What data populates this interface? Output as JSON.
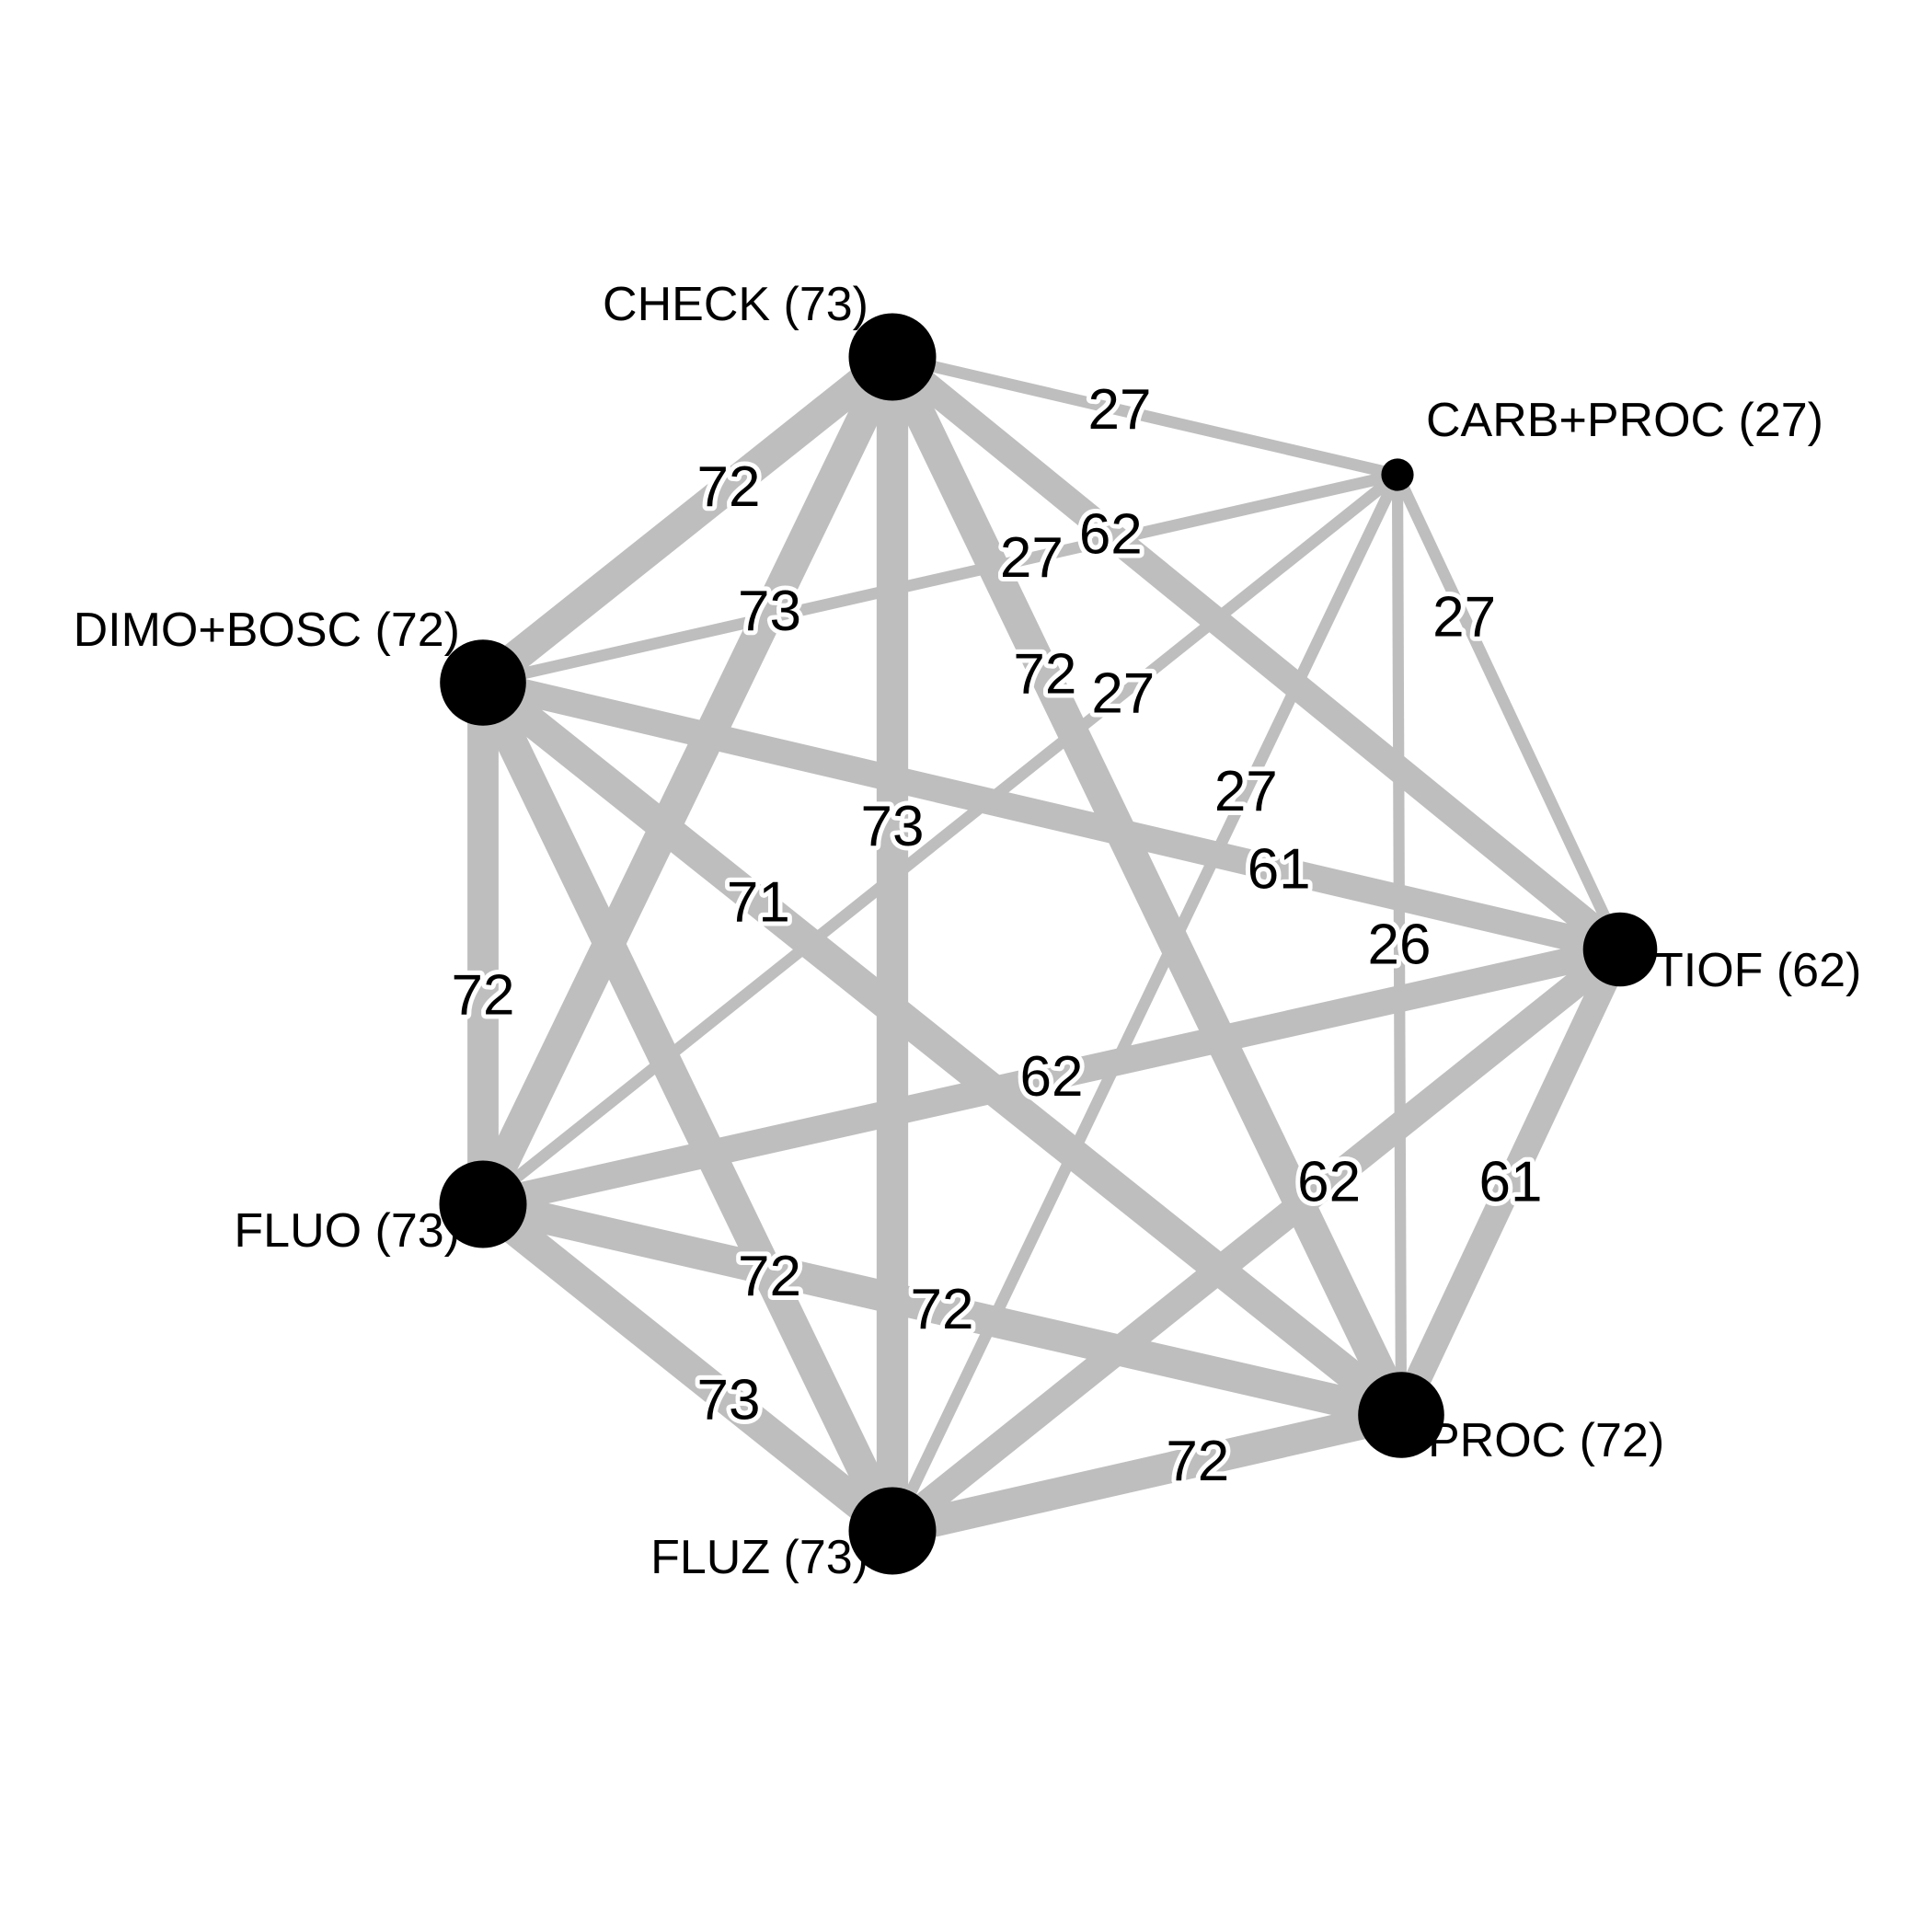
{
  "nodes": [
    {
      "id": "CHECK",
      "label": "CHECK (73)",
      "n": 73
    },
    {
      "id": "CARB+PROC",
      "label": "CARB+PROC (27)",
      "n": 27
    },
    {
      "id": "TIOF",
      "label": "TIOF (62)",
      "n": 62
    },
    {
      "id": "PROC",
      "label": "PROC (72)",
      "n": 72
    },
    {
      "id": "FLUZ",
      "label": "FLUZ (73)",
      "n": 73
    },
    {
      "id": "FLUO",
      "label": "FLUO (73)",
      "n": 73
    },
    {
      "id": "DIMO+BOSC",
      "label": "DIMO+BOSC (72)",
      "n": 72
    }
  ],
  "edges": [
    {
      "from": "CHECK",
      "to": "CARB+PROC",
      "label": "27",
      "value": 27
    },
    {
      "from": "CHECK",
      "to": "TIOF",
      "label": "62",
      "value": 62
    },
    {
      "from": "CHECK",
      "to": "PROC",
      "label": "72",
      "value": 72
    },
    {
      "from": "CHECK",
      "to": "FLUZ",
      "label": "73",
      "value": 73
    },
    {
      "from": "CHECK",
      "to": "FLUO",
      "label": "73",
      "value": 73
    },
    {
      "from": "CHECK",
      "to": "DIMO+BOSC",
      "label": "72",
      "value": 72
    },
    {
      "from": "CARB+PROC",
      "to": "TIOF",
      "label": "27",
      "value": 27
    },
    {
      "from": "CARB+PROC",
      "to": "PROC",
      "label": "26",
      "value": 26
    },
    {
      "from": "CARB+PROC",
      "to": "FLUZ",
      "label": "27",
      "value": 27
    },
    {
      "from": "CARB+PROC",
      "to": "FLUO",
      "label": "27",
      "value": 27
    },
    {
      "from": "CARB+PROC",
      "to": "DIMO+BOSC",
      "label": "27",
      "value": 27
    },
    {
      "from": "TIOF",
      "to": "PROC",
      "label": "61",
      "value": 61
    },
    {
      "from": "TIOF",
      "to": "FLUZ",
      "label": "62",
      "value": 62
    },
    {
      "from": "TIOF",
      "to": "FLUO",
      "label": "62",
      "value": 62
    },
    {
      "from": "TIOF",
      "to": "DIMO+BOSC",
      "label": "61",
      "value": 61
    },
    {
      "from": "PROC",
      "to": "FLUZ",
      "label": "72",
      "value": 72
    },
    {
      "from": "PROC",
      "to": "FLUO",
      "label": "72",
      "value": 72
    },
    {
      "from": "PROC",
      "to": "DIMO+BOSC",
      "label": "71",
      "value": 71
    },
    {
      "from": "FLUZ",
      "to": "FLUO",
      "label": "73",
      "value": 73
    },
    {
      "from": "FLUZ",
      "to": "DIMO+BOSC",
      "label": "72",
      "value": 72
    },
    {
      "from": "FLUO",
      "to": "DIMO+BOSC",
      "label": "72",
      "value": 72
    }
  ],
  "colors": {
    "edge": "#bebebe",
    "node": "#000000",
    "label_halo": "#ffffff"
  }
}
